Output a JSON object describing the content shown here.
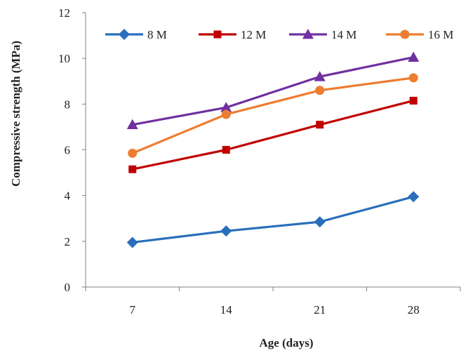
{
  "chart_data": {
    "type": "line",
    "title": "",
    "xlabel": "Age (days)",
    "ylabel": "Compressive strength (MPa)",
    "categories": [
      "7",
      "14",
      "21",
      "28"
    ],
    "ylim": [
      0,
      12
    ],
    "yticks": [
      0,
      2,
      4,
      6,
      8,
      10,
      12
    ],
    "grid": false,
    "legend_position": "top",
    "series": [
      {
        "name": "8 M",
        "values": [
          1.95,
          2.45,
          2.85,
          3.95
        ],
        "color": "#2a6ebb",
        "marker": "diamond"
      },
      {
        "name": "12 M",
        "values": [
          5.15,
          6.0,
          7.1,
          8.15
        ],
        "color": "#c00000",
        "marker": "square"
      },
      {
        "name": "14 M",
        "values": [
          7.1,
          7.85,
          9.2,
          10.05
        ],
        "color": "#7030a0",
        "marker": "triangle"
      },
      {
        "name": "16 M",
        "values": [
          5.85,
          7.55,
          8.6,
          9.15
        ],
        "color": "#ed7d31",
        "marker": "circle"
      }
    ]
  }
}
